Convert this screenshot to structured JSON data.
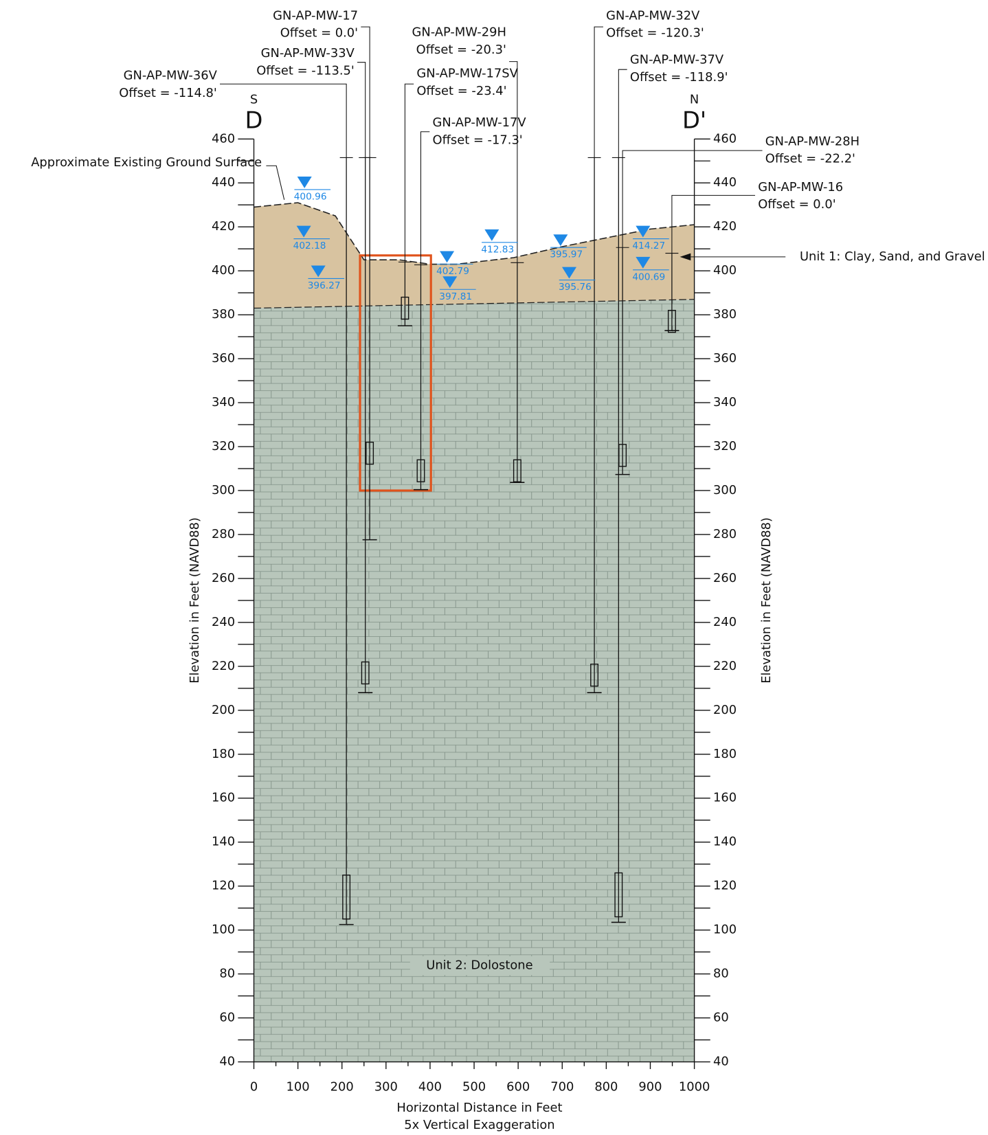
{
  "chart_data": {
    "type": "cross-section",
    "xlabel": "Horizontal Distance in Feet",
    "xlabel_note": "5x Vertical Exaggeration",
    "ylabel": "Elevation in Feet (NAVD88)",
    "section_start": "D",
    "section_end": "D'",
    "start_direction": "S",
    "end_direction": "N",
    "xlim": [
      0,
      1000
    ],
    "xticks": [
      0,
      100,
      200,
      300,
      400,
      500,
      600,
      700,
      800,
      900,
      1000
    ],
    "ylim": [
      40,
      460
    ],
    "yticks": [
      40,
      60,
      80,
      100,
      120,
      140,
      160,
      180,
      200,
      220,
      240,
      260,
      280,
      300,
      320,
      340,
      360,
      380,
      400,
      420,
      440,
      460
    ],
    "ground_surface_label": "Approximate Existing Ground Surface",
    "ground_surface": {
      "x": [
        0,
        100,
        185,
        250,
        330,
        400,
        460,
        590,
        700,
        800,
        900,
        1000
      ],
      "y": [
        429,
        431,
        425,
        405,
        405,
        403,
        403,
        406,
        411,
        415,
        419,
        421
      ]
    },
    "bedrock_surface": {
      "x": [
        0,
        1000
      ],
      "y": [
        383,
        387
      ]
    },
    "units": [
      "Unit 1: Clay, Sand, and Gravel",
      "Unit 2: Dolostone"
    ],
    "colors": {
      "unit1": "#d8c3a0",
      "unit2": "#b8c6bb",
      "water": "#1e88e5",
      "highlight": "#e0531c"
    },
    "highlight_box": {
      "x": [
        241,
        402
      ],
      "y": [
        300,
        407
      ]
    },
    "wells": [
      {
        "name": "GN-AP-MW-36V",
        "offset": "Offset = -114.8'",
        "x": 210,
        "top": 451.5,
        "bottom": 102.5,
        "screen": [
          105,
          125
        ]
      },
      {
        "name": "GN-AP-MW-33V",
        "offset": "Offset = -113.5'",
        "x": 253,
        "top": 451.5,
        "bottom": 208,
        "screen": [
          212,
          222
        ]
      },
      {
        "name": "GN-AP-MW-17",
        "offset": "Offset = 0.0'",
        "x": 263,
        "top": 451.5,
        "bottom": 277.6,
        "screen": [
          312,
          322
        ]
      },
      {
        "name": "GN-AP-MW-17SV",
        "offset": "Offset = -23.4'",
        "x": 343,
        "top": 404,
        "bottom": 375,
        "screen": [
          378,
          388
        ]
      },
      {
        "name": "GN-AP-MW-17V",
        "offset": "Offset = -17.3'",
        "x": 379,
        "top": 402.7,
        "bottom": 300.4,
        "screen": [
          304,
          314
        ]
      },
      {
        "name": "GN-AP-MW-29H",
        "offset": "Offset = -20.3'",
        "x": 598,
        "top": 403.7,
        "bottom": 303.7,
        "screen": [
          304,
          314
        ]
      },
      {
        "name": "GN-AP-MW-32V",
        "offset": "Offset = -120.3'",
        "x": 773,
        "top": 451.5,
        "bottom": 208,
        "screen": [
          211,
          221
        ]
      },
      {
        "name": "GN-AP-MW-37V",
        "offset": "Offset = -118.9'",
        "x": 828,
        "top": 451.5,
        "bottom": 103.5,
        "screen": [
          106,
          126
        ]
      },
      {
        "name": "GN-AP-MW-28H",
        "offset": "Offset = -22.2'",
        "x": 837,
        "top": 410.6,
        "bottom": 307.3,
        "screen": [
          311,
          321
        ]
      },
      {
        "name": "GN-AP-MW-16",
        "offset": "Offset = 0.0'",
        "x": 949,
        "top": 408,
        "bottom": 372.8,
        "screen": [
          372,
          382
        ]
      }
    ],
    "water_levels": [
      400.96,
      402.18,
      396.27,
      402.79,
      397.81,
      412.83,
      395.97,
      395.76,
      414.27,
      400.69
    ]
  }
}
